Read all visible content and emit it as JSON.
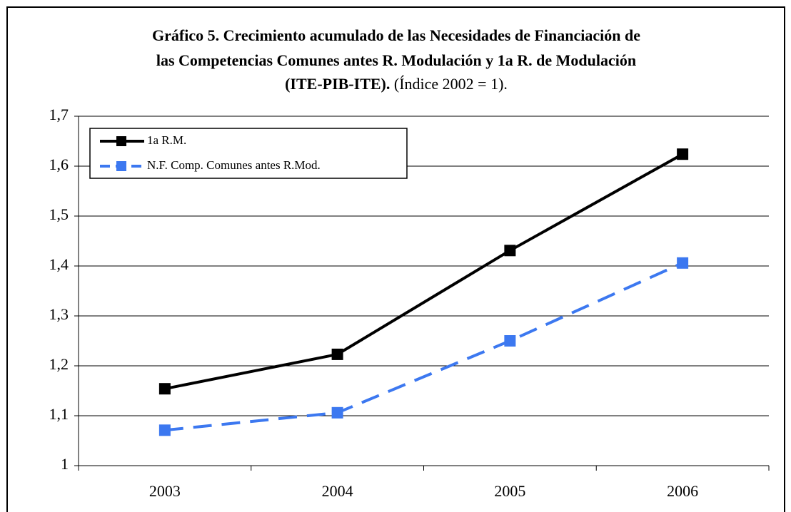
{
  "chart_data": {
    "type": "line",
    "title_lines": [
      "Gráfico 5. Crecimiento acumulado de las Necesidades de Financiación  de",
      "las Competencias Comunes antes R. Modulación y 1a R. de Modulación",
      "(ITE-PIB-ITE)."
    ],
    "subtitle": "(Índice 2002 = 1).",
    "categories": [
      "2003",
      "2004",
      "2005",
      "2006"
    ],
    "series": [
      {
        "name": "1a R.M.",
        "color": "#000000",
        "linestyle": "solid",
        "values": [
          1.154,
          1.223,
          1.431,
          1.624
        ]
      },
      {
        "name": "N.F. Comp. Comunes antes R.Mod.",
        "color": "#3c78f0",
        "linestyle": "dashed",
        "values": [
          1.071,
          1.106,
          1.25,
          1.406
        ]
      }
    ],
    "ylim": [
      1,
      1.7
    ],
    "yticks": [
      1,
      {
        "value": 1.1,
        "label": "1,1"
      },
      {
        "value": 1.2,
        "label": "1,2"
      },
      {
        "value": 1.3,
        "label": "1,3"
      },
      {
        "value": 1.4,
        "label": "1,4"
      },
      {
        "value": 1.5,
        "label": "1,5"
      },
      {
        "value": 1.6,
        "label": "1,6"
      },
      {
        "value": 1.7,
        "label": "1,7"
      }
    ],
    "grid": true,
    "legend": "upper left"
  }
}
